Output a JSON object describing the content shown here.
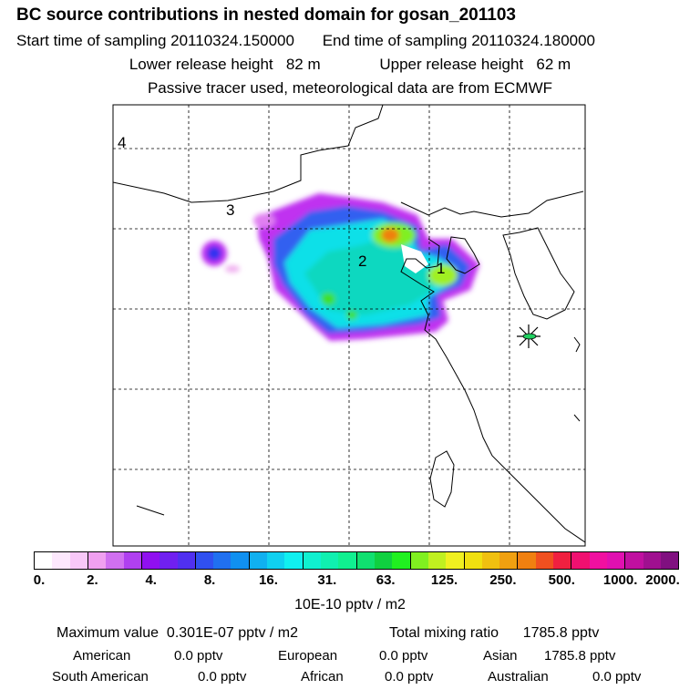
{
  "header": {
    "title": "BC  source contributions in nested domain for gosan_201103",
    "start_label": "Start time of sampling",
    "start_value": "20110324.150000",
    "end_label": "End time of sampling",
    "end_value": "20110324.180000",
    "lower_label": "Lower release height",
    "lower_value": "82 m",
    "upper_label": "Upper release height",
    "upper_value": "62 m",
    "note": "Passive tracer used, meteorological data are from ECMWF"
  },
  "map": {
    "region_labels": [
      "1",
      "2",
      "3",
      "4"
    ],
    "receptor_marker": "star-icon"
  },
  "legend": {
    "tick_labels": [
      "0.",
      "2.",
      "4.",
      "8.",
      "16.",
      "31.",
      "63.",
      "125.",
      "250.",
      "500.",
      "1000.",
      "2000."
    ],
    "unit": "10E-10 pptv / m2",
    "colors": [
      "#ffffff",
      "#fde8fd",
      "#f8c8f8",
      "#f0a0f0",
      "#d070f0",
      "#b040f0",
      "#9010f0",
      "#7020f0",
      "#5030f0",
      "#3050f0",
      "#2070f0",
      "#1090f0",
      "#10b0f0",
      "#10d0f0",
      "#10f0f0",
      "#10f0d0",
      "#10f0b0",
      "#10f090",
      "#10e070",
      "#10d040",
      "#20f020",
      "#80f020",
      "#c0f020",
      "#f0f020",
      "#f0e010",
      "#f0c010",
      "#f0a010",
      "#f08010",
      "#f05020",
      "#f02040",
      "#f01070",
      "#f010a0",
      "#e010b0",
      "#c010a0",
      "#a01090",
      "#801080"
    ]
  },
  "stats": {
    "max_label": "Maximum value",
    "max_value": "0.301E-07 pptv / m2",
    "total_label": "Total mixing ratio",
    "total_value": "1785.8 pptv",
    "american_label": "American",
    "american_value": "0.0 pptv",
    "european_label": "European",
    "european_value": "0.0 pptv",
    "asian_label": "Asian",
    "asian_value": "1785.8 pptv",
    "south_american_label": "South American",
    "south_american_value": "0.0 pptv",
    "african_label": "African",
    "african_value": "0.0 pptv",
    "australian_label": "Australian",
    "australian_value": "0.0 pptv"
  }
}
